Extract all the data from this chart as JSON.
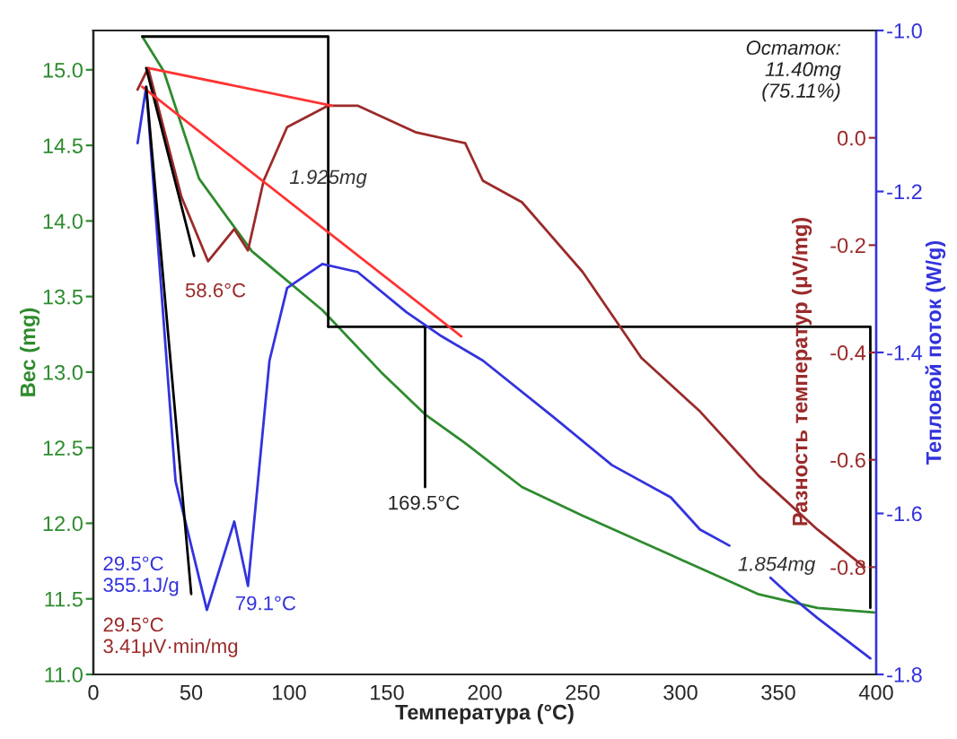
{
  "chart_data": {
    "type": "line",
    "xlabel": "Температура (°C)",
    "ylabel": "Вес (mg)",
    "y2label": "Разность температур (μV/mg)",
    "y3label": "Тепловой поток (W/g)",
    "xlim": [
      0,
      400
    ],
    "xticks": [
      0,
      50,
      100,
      150,
      200,
      250,
      300,
      350,
      400
    ],
    "ylim": [
      11.0,
      15.26
    ],
    "yticks": [
      {
        "value": 11,
        "label": "11.0"
      },
      {
        "value": 11.5,
        "label": "11.5"
      },
      {
        "value": 12,
        "label": "12.0"
      },
      {
        "value": 12.5,
        "label": "12.5"
      },
      {
        "value": 13,
        "label": "13.0"
      },
      {
        "value": 13.5,
        "label": "13.5"
      },
      {
        "value": 14,
        "label": "14.0"
      },
      {
        "value": 14.5,
        "label": "14.5"
      },
      {
        "value": 15,
        "label": "15.0"
      }
    ],
    "y2lim": [
      -1.0,
      0.2
    ],
    "y2ticks": [
      {
        "value": -0.8,
        "label": "-0.8"
      },
      {
        "value": -0.6,
        "label": "-0.6"
      },
      {
        "value": -0.4,
        "label": "-0.4"
      },
      {
        "value": -0.2,
        "label": "-0.2"
      },
      {
        "value": 0,
        "label": "0.0"
      }
    ],
    "y3lim": [
      -1.8,
      -1.0
    ],
    "y3ticks": [
      {
        "value": -1.8,
        "label": "-1.8"
      },
      {
        "value": -1.6,
        "label": "-1.6"
      },
      {
        "value": -1.4,
        "label": "-1.4"
      },
      {
        "value": -1.2,
        "label": "-1.2"
      },
      {
        "value": -1.0,
        "label": "-1.0"
      }
    ],
    "grid": false,
    "legend": false,
    "marker": "none",
    "line_style": "solid",
    "series": [
      {
        "color": "#2e8b2e",
        "x": [
          25,
          36,
          54,
          81,
          117,
          147,
          169.5,
          190,
          219,
          250,
          295,
          340,
          370,
          399
        ],
        "values": [
          15.22,
          14.99,
          14.28,
          13.8,
          13.41,
          13.0,
          12.72,
          12.53,
          12.24,
          12.05,
          11.79,
          11.53,
          11.44,
          11.41
        ]
      },
      {
        "color": "#9b2a2a",
        "axis": "y2",
        "x": [
          22.6,
          28,
          45,
          58.6,
          72,
          79,
          87,
          99,
          120,
          135,
          165,
          190,
          199,
          219,
          250,
          280,
          310,
          340,
          370,
          394
        ],
        "values": [
          0.09,
          0.13,
          -0.11,
          -0.23,
          -0.17,
          -0.21,
          -0.08,
          0.02,
          0.06,
          0.06,
          0.01,
          -0.01,
          -0.08,
          -0.12,
          -0.25,
          -0.41,
          -0.51,
          -0.63,
          -0.73,
          -0.8
        ]
      },
      {
        "color": "#3333dd",
        "axis": "y3",
        "x": [
          22.6,
          27,
          42,
          51,
          58,
          72,
          79,
          90,
          99,
          117,
          135,
          160,
          178,
          199,
          235,
          265,
          295,
          310,
          325,
          335,
          346,
          355,
          370,
          397
        ],
        "values": [
          -1.14,
          -1.07,
          -1.56,
          -1.65,
          -1.72,
          -1.61,
          -1.69,
          -1.41,
          -1.32,
          -1.29,
          -1.3,
          -1.35,
          -1.38,
          -1.41,
          -1.48,
          -1.54,
          -1.58,
          -1.62,
          -1.64,
          null,
          -1.68,
          -1.7,
          -1.73,
          -1.78
        ]
      },
      {
        "color": "#ff3333",
        "axis": "y2",
        "x": [
          28,
          122
        ],
        "values": [
          0.13,
          0.06
        ]
      },
      {
        "color": "#ff3333",
        "axis": "y3",
        "x": [
          25,
          188
        ],
        "values": [
          -1.07,
          -1.38
        ]
      },
      {
        "color": "#000000",
        "axis": "y2",
        "x": [
          27,
          51.5
        ],
        "values": [
          0.13,
          -0.22
        ]
      },
      {
        "color": "#000000",
        "axis": "y3",
        "x": [
          27,
          50
        ],
        "values": [
          -1.07,
          -1.7
        ]
      },
      {
        "color": "#000000",
        "x": [
          25,
          120,
          120
        ],
        "values": [
          15.22,
          15.22,
          13.3
        ]
      },
      {
        "color": "#000000",
        "x": [
          120,
          397,
          397
        ],
        "values": [
          13.3,
          13.3,
          11.44
        ]
      },
      {
        "color": "#000000",
        "x": [
          169.5,
          169.5
        ],
        "values": [
          13.3,
          12.24
        ]
      }
    ],
    "annotations": [
      {
        "text": "1.925mg",
        "x": 120,
        "y": 14.28
      },
      "58.6°C",
      "169.5°C",
      {
        "text": "1.854mg",
        "x": 397,
        "y": 11.72
      },
      "79.1°C",
      "29.5°C\n355.1J/g",
      "29.5°C\n3.41μV·min/mg",
      "Остаток:\n11.40mg\n(75.11%)"
    ]
  }
}
